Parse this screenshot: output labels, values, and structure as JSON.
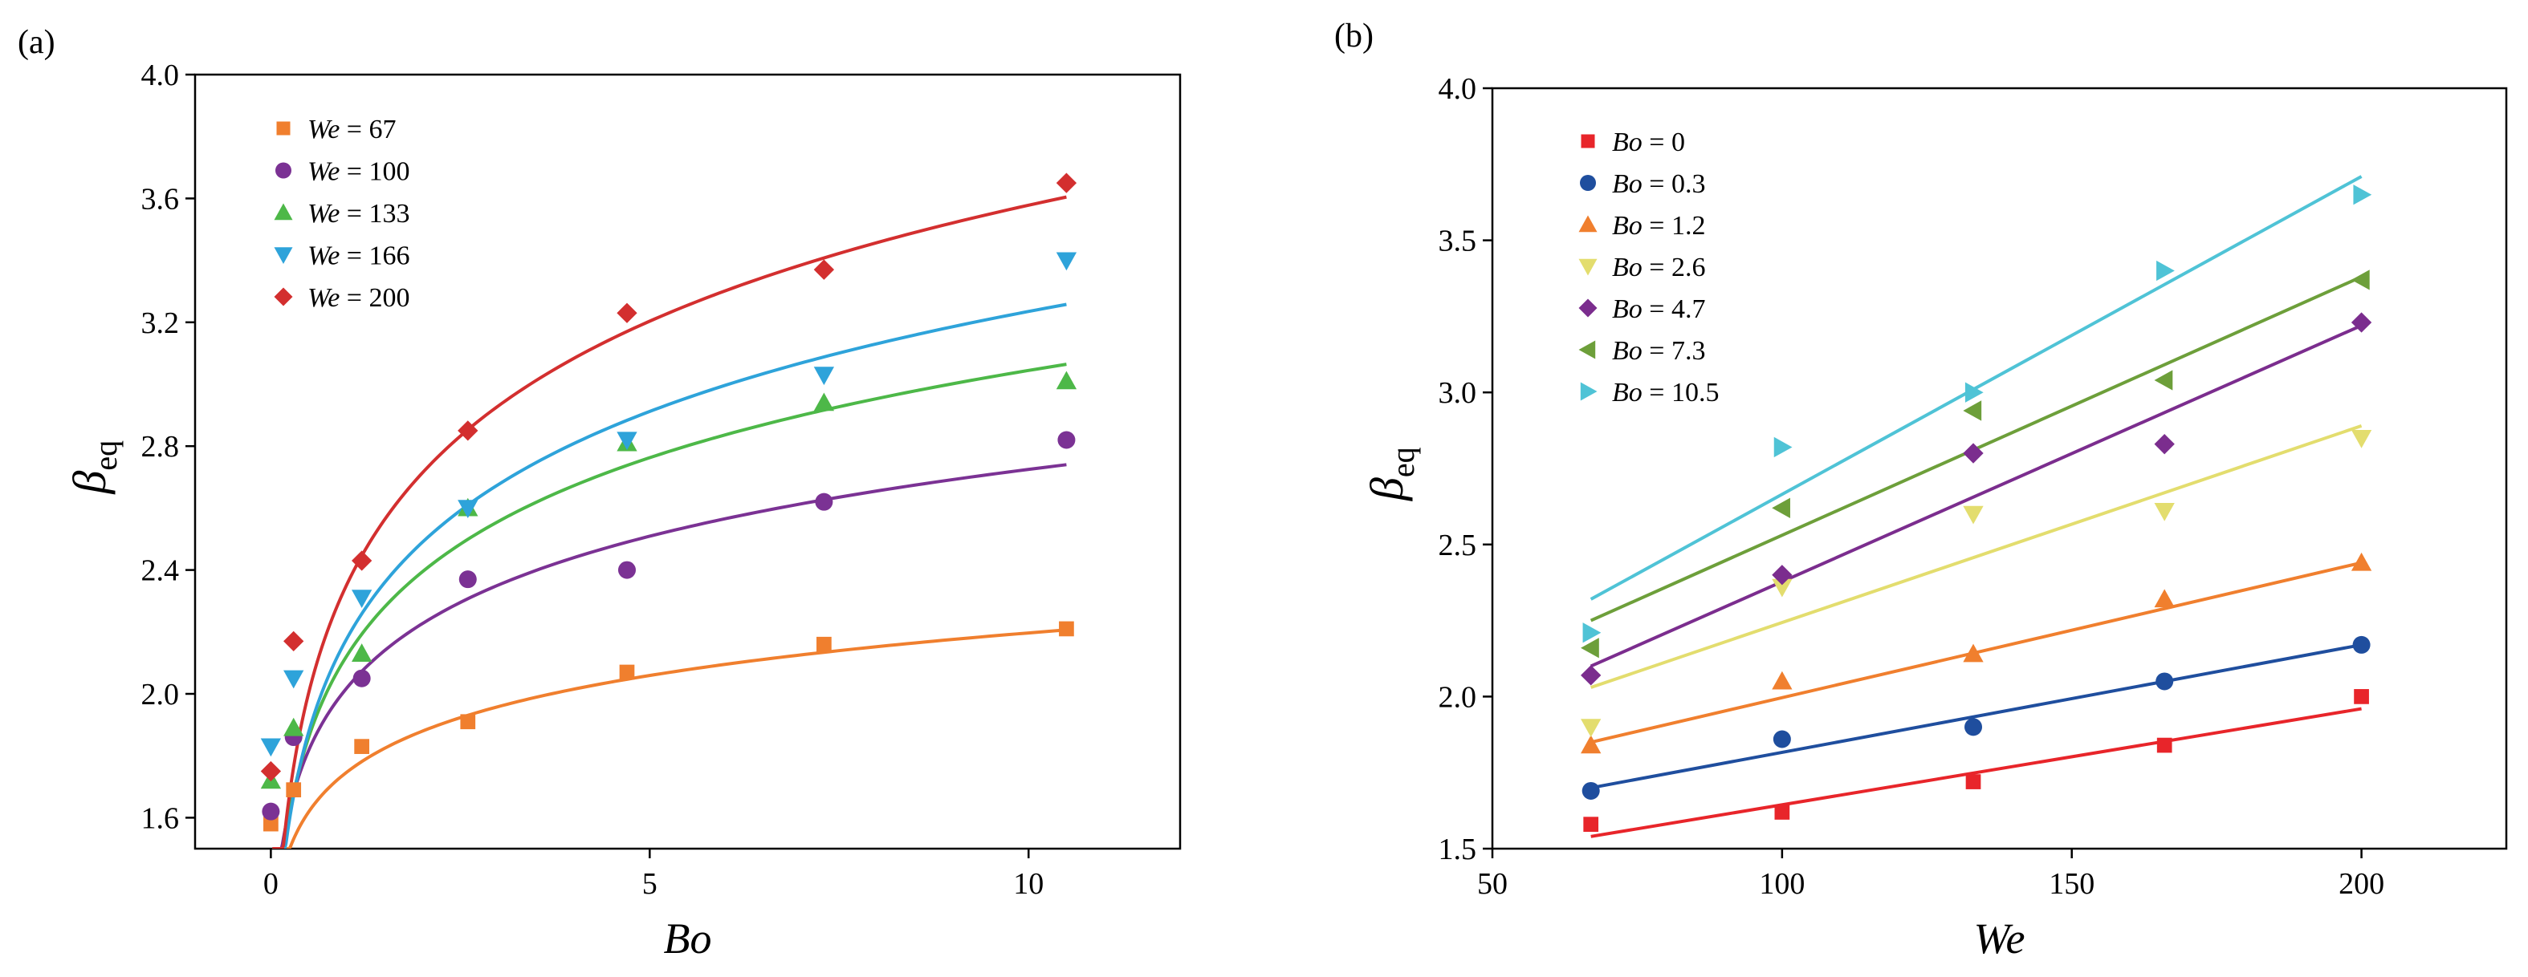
{
  "chart_data": [
    {
      "panel_label": "(a)",
      "type": "scatter",
      "title": "",
      "xlabel": "Bo",
      "ylabel": {
        "main": "β",
        "sub": "eq"
      },
      "xlim": [
        -1,
        12
      ],
      "ylim": [
        1.5,
        4.0
      ],
      "xticks": [
        0,
        5,
        10
      ],
      "xtick_labels": [
        "0",
        "5",
        "10"
      ],
      "yticks": [
        1.6,
        2.0,
        2.4,
        2.8,
        3.2,
        3.6,
        4.0
      ],
      "ytick_labels": [
        "1.6",
        "2.0",
        "2.4",
        "2.8",
        "3.2",
        "3.6",
        "4.0"
      ],
      "legend_position": "top-left",
      "x": [
        0,
        0.3,
        1.2,
        2.6,
        4.7,
        7.3,
        10.5
      ],
      "series": [
        {
          "legend_var": "We",
          "legend_val": " = 67",
          "marker": "square",
          "color": "#F07F2E",
          "values": [
            1.58,
            1.69,
            1.83,
            1.91,
            2.07,
            2.16,
            2.21
          ],
          "fit": {
            "a": 1.735,
            "b": 0.2,
            "c": 0.06
          }
        },
        {
          "legend_var": "We",
          "legend_val": " = 100",
          "marker": "circle",
          "color": "#7B3294",
          "values": [
            1.62,
            1.86,
            2.05,
            2.37,
            2.4,
            2.62,
            2.82
          ],
          "fit": {
            "a": 2.0,
            "b": 0.314,
            "c": 0.06
          }
        },
        {
          "legend_var": "We",
          "legend_val": " = 133",
          "marker": "triangle-up",
          "color": "#4DB848",
          "values": [
            1.72,
            1.89,
            2.13,
            2.6,
            2.81,
            2.94,
            3.01
          ],
          "fit": {
            "a": 2.098,
            "b": 0.41,
            "c": 0.06
          }
        },
        {
          "legend_var": "We",
          "legend_val": " = 166",
          "marker": "triangle-down",
          "color": "#2EA3DA",
          "values": [
            1.83,
            2.05,
            2.31,
            2.6,
            2.82,
            3.03,
            3.4
          ],
          "fit": {
            "a": 2.15,
            "b": 0.47,
            "c": 0.06
          }
        },
        {
          "legend_var": "We",
          "legend_val": " = 200",
          "marker": "diamond",
          "color": "#D32F2F",
          "values": [
            1.75,
            2.17,
            2.43,
            2.85,
            3.23,
            3.37,
            3.65
          ],
          "fit": {
            "a": 2.32,
            "b": 0.545,
            "c": 0.06
          }
        }
      ]
    },
    {
      "panel_label": "(b)",
      "type": "scatter",
      "title": "",
      "xlabel": "We",
      "ylabel": {
        "main": "β",
        "sub": "eq"
      },
      "xlim": [
        50,
        225
      ],
      "ylim": [
        1.5,
        4.0
      ],
      "xticks": [
        50,
        100,
        150,
        200
      ],
      "xtick_labels": [
        "50",
        "100",
        "150",
        "200"
      ],
      "yticks": [
        1.5,
        2.0,
        2.5,
        3.0,
        3.5,
        4.0
      ],
      "ytick_labels": [
        "1.5",
        "2.0",
        "2.5",
        "3.0",
        "3.5",
        "4.0"
      ],
      "legend_position": "top-left",
      "x": [
        67,
        100,
        133,
        166,
        200
      ],
      "series": [
        {
          "legend_var": "Bo",
          "legend_val": " = 0",
          "marker": "square",
          "color": "#E8252A",
          "values": [
            1.58,
            1.62,
            1.72,
            1.84,
            2.0
          ],
          "fit_line": [
            1.54,
            1.96
          ]
        },
        {
          "legend_var": "Bo",
          "legend_val": " = 0.3",
          "marker": "circle",
          "color": "#1F4E9E",
          "values": [
            1.69,
            1.86,
            1.9,
            2.05,
            2.17
          ],
          "fit_line": [
            1.7,
            2.17
          ]
        },
        {
          "legend_var": "Bo",
          "legend_val": " = 1.2",
          "marker": "triangle-up",
          "color": "#F07F2E",
          "values": [
            1.84,
            2.05,
            2.14,
            2.32,
            2.44
          ],
          "fit_line": [
            1.85,
            2.44
          ]
        },
        {
          "legend_var": "Bo",
          "legend_val": " = 2.6",
          "marker": "triangle-down",
          "color": "#E3DD6E",
          "values": [
            1.9,
            2.36,
            2.6,
            2.61,
            2.85
          ],
          "fit_line": [
            2.03,
            2.89
          ]
        },
        {
          "legend_var": "Bo",
          "legend_val": " = 4.7",
          "marker": "diamond",
          "color": "#7B2D8E",
          "values": [
            2.07,
            2.4,
            2.8,
            2.83,
            3.23
          ],
          "fit_line": [
            2.1,
            3.22
          ]
        },
        {
          "legend_var": "Bo",
          "legend_val": " = 7.3",
          "marker": "triangle-left",
          "color": "#6D9F3A",
          "values": [
            2.16,
            2.62,
            2.94,
            3.04,
            3.37
          ],
          "fit_line": [
            2.25,
            3.38
          ]
        },
        {
          "legend_var": "Bo",
          "legend_val": " = 10.5",
          "marker": "triangle-right",
          "color": "#4FC3D6",
          "values": [
            2.21,
            2.82,
            3.0,
            3.4,
            3.65
          ],
          "fit_line": [
            2.32,
            3.71
          ]
        }
      ]
    }
  ]
}
